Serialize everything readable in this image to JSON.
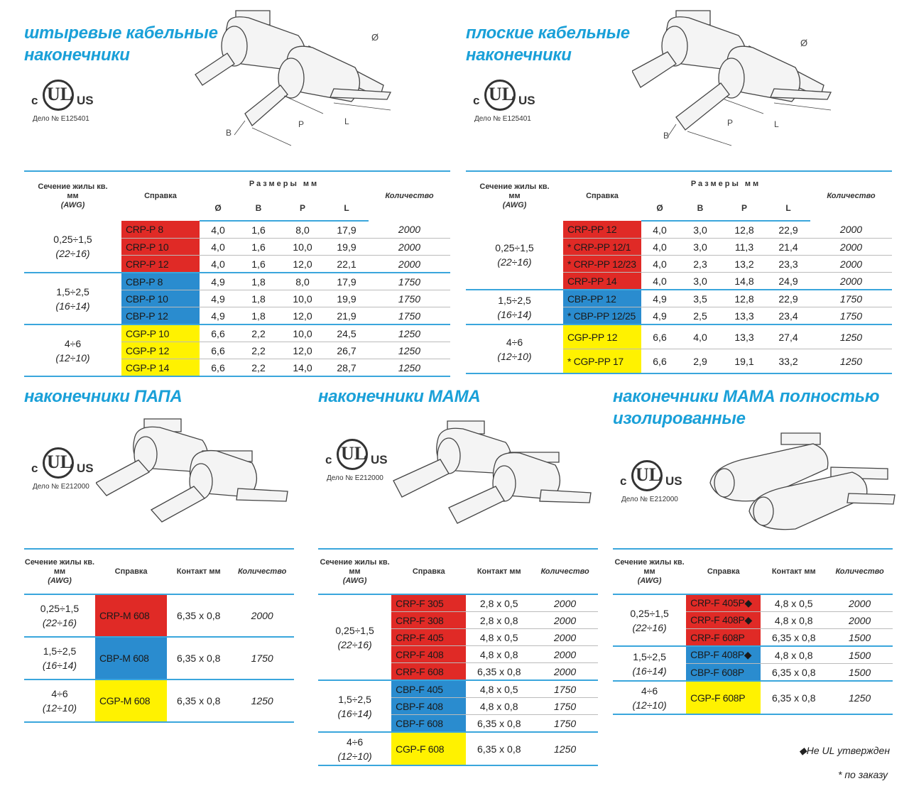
{
  "panels": {
    "pin": {
      "title_line1": "штыревые кабельные",
      "title_line2": "наконечники",
      "ul": {
        "c": "c",
        "ul": "UL",
        "us": "US",
        "case": "Дело № E125401"
      },
      "dims": {
        "diam": "Ø",
        "b": "B",
        "p": "P",
        "l": "L"
      },
      "headers": {
        "section": "Сечение жилы кв. мм",
        "awg": "(AWG)",
        "ref": "Справка",
        "sizes": "Размеры мм",
        "qty": "Количество",
        "d": "Ø",
        "b": "B",
        "p": "P",
        "l": "L"
      },
      "groups": [
        {
          "mm": "0,25÷1,5",
          "awg": "(22÷16)",
          "color": "red",
          "rows": [
            {
              "code": "CRP-P 8",
              "d": "4,0",
              "b": "1,6",
              "p": "8,0",
              "l": "17,9",
              "qty": "2000"
            },
            {
              "code": "CRP-P 10",
              "d": "4,0",
              "b": "1,6",
              "p": "10,0",
              "l": "19,9",
              "qty": "2000"
            },
            {
              "code": "CRP-P 12",
              "d": "4,0",
              "b": "1,6",
              "p": "12,0",
              "l": "22,1",
              "qty": "2000"
            }
          ]
        },
        {
          "mm": "1,5÷2,5",
          "awg": "(16÷14)",
          "color": "blue",
          "rows": [
            {
              "code": "CBP-P 8",
              "d": "4,9",
              "b": "1,8",
              "p": "8,0",
              "l": "17,9",
              "qty": "1750"
            },
            {
              "code": "CBP-P 10",
              "d": "4,9",
              "b": "1,8",
              "p": "10,0",
              "l": "19,9",
              "qty": "1750"
            },
            {
              "code": "CBP-P 12",
              "d": "4,9",
              "b": "1,8",
              "p": "12,0",
              "l": "21,9",
              "qty": "1750"
            }
          ]
        },
        {
          "mm": "4÷6",
          "awg": "(12÷10)",
          "color": "yellow",
          "rows": [
            {
              "code": "CGP-P 10",
              "d": "6,6",
              "b": "2,2",
              "p": "10,0",
              "l": "24,5",
              "qty": "1250"
            },
            {
              "code": "CGP-P 12",
              "d": "6,6",
              "b": "2,2",
              "p": "12,0",
              "l": "26,7",
              "qty": "1250"
            },
            {
              "code": "CGP-P 14",
              "d": "6,6",
              "b": "2,2",
              "p": "14,0",
              "l": "28,7",
              "qty": "1250"
            }
          ]
        }
      ]
    },
    "flat": {
      "title_line1": "плоские кабельные",
      "title_line2": "наконечники",
      "ul": {
        "c": "c",
        "ul": "UL",
        "us": "US",
        "case": "Дело № E125401"
      },
      "dims": {
        "diam": "Ø",
        "b": "B",
        "p": "P",
        "l": "L"
      },
      "headers": {
        "section": "Сечение жилы кв. мм",
        "awg": "(AWG)",
        "ref": "Справка",
        "sizes": "Размеры мм",
        "qty": "Количество",
        "d": "Ø",
        "b": "B",
        "p": "P",
        "l": "L"
      },
      "groups": [
        {
          "mm": "0,25÷1,5",
          "awg": "(22÷16)",
          "color": "red",
          "rows": [
            {
              "code": "CRP-PP 12",
              "d": "4,0",
              "b": "3,0",
              "p": "12,8",
              "l": "22,9",
              "qty": "2000"
            },
            {
              "code": "* CRP-PP 12/1",
              "d": "4,0",
              "b": "3,0",
              "p": "11,3",
              "l": "21,4",
              "qty": "2000"
            },
            {
              "code": "* CRP-PP 12/23",
              "d": "4,0",
              "b": "2,3",
              "p": "13,2",
              "l": "23,3",
              "qty": "2000"
            },
            {
              "code": "CRP-PP 14",
              "d": "4,0",
              "b": "3,0",
              "p": "14,8",
              "l": "24,9",
              "qty": "2000"
            }
          ]
        },
        {
          "mm": "1,5÷2,5",
          "awg": "(16÷14)",
          "color": "blue",
          "rows": [
            {
              "code": "CBP-PP 12",
              "d": "4,9",
              "b": "3,5",
              "p": "12,8",
              "l": "22,9",
              "qty": "1750"
            },
            {
              "code": "* CBP-PP 12/25",
              "d": "4,9",
              "b": "2,5",
              "p": "13,3",
              "l": "23,4",
              "qty": "1750"
            }
          ]
        },
        {
          "mm": "4÷6",
          "awg": "(12÷10)",
          "color": "yellow",
          "tall": true,
          "rows": [
            {
              "code": "CGP-PP 12",
              "d": "6,6",
              "b": "4,0",
              "p": "13,3",
              "l": "27,4",
              "qty": "1250"
            },
            {
              "code": "* CGP-PP 17",
              "d": "6,6",
              "b": "2,9",
              "p": "19,1",
              "l": "33,2",
              "qty": "1250"
            }
          ]
        }
      ]
    },
    "male": {
      "title_line1": "наконечники ПАПА",
      "ul": {
        "c": "c",
        "ul": "UL",
        "us": "US",
        "case": "Дело № E212000"
      },
      "headers": {
        "section": "Сечение жилы кв. мм",
        "awg": "(AWG)",
        "ref": "Справка",
        "contact": "Контакт мм",
        "qty": "Количество"
      },
      "groups": [
        {
          "mm": "0,25÷1,5",
          "awg": "(22÷16)",
          "color": "red",
          "rows": [
            {
              "code": "CRP-M 608",
              "contact": "6,35 x 0,8",
              "qty": "2000"
            }
          ]
        },
        {
          "mm": "1,5÷2,5",
          "awg": "(16÷14)",
          "color": "blue",
          "rows": [
            {
              "code": "CBP-M 608",
              "contact": "6,35 x 0,8",
              "qty": "1750"
            }
          ]
        },
        {
          "mm": "4÷6",
          "awg": "(12÷10)",
          "color": "yellow",
          "rows": [
            {
              "code": "CGP-M 608",
              "contact": "6,35 x 0,8",
              "qty": "1250"
            }
          ]
        }
      ]
    },
    "female": {
      "title_line1": "наконечники МАМА",
      "ul": {
        "c": "c",
        "ul": "UL",
        "us": "US",
        "case": "Дело № E212000"
      },
      "headers": {
        "section": "Сечение жилы кв. мм",
        "awg": "(AWG)",
        "ref": "Справка",
        "contact": "Контакт мм",
        "qty": "Количество"
      },
      "groups": [
        {
          "mm": "0,25÷1,5",
          "awg": "(22÷16)",
          "color": "red",
          "rows": [
            {
              "code": "CRP-F 305",
              "contact": "2,8 x 0,5",
              "qty": "2000"
            },
            {
              "code": "CRP-F 308",
              "contact": "2,8 x 0,8",
              "qty": "2000"
            },
            {
              "code": "CRP-F 405",
              "contact": "4,8 x 0,5",
              "qty": "2000"
            },
            {
              "code": "CRP-F 408",
              "contact": "4,8 x 0,8",
              "qty": "2000"
            },
            {
              "code": "CRP-F 608",
              "contact": "6,35 x 0,8",
              "qty": "2000"
            }
          ]
        },
        {
          "mm": "1,5÷2,5",
          "awg": "(16÷14)",
          "color": "blue",
          "rows": [
            {
              "code": "CBP-F 405",
              "contact": "4,8 x 0,5",
              "qty": "1750"
            },
            {
              "code": "CBP-F 408",
              "contact": "4,8 x 0,8",
              "qty": "1750"
            },
            {
              "code": "CBP-F 608",
              "contact": "6,35 x 0,8",
              "qty": "1750"
            }
          ]
        },
        {
          "mm": "4÷6",
          "awg": "(12÷10)",
          "color": "yellow",
          "tall": true,
          "rows": [
            {
              "code": "CGP-F 608",
              "contact": "6,35 x 0,8",
              "qty": "1250"
            }
          ]
        }
      ]
    },
    "female_ins": {
      "title_line1": "наконечники МАМА полностью",
      "title_line2": "изолированные",
      "ul": {
        "c": "c",
        "ul": "UL",
        "us": "US",
        "case": "Дело № E212000"
      },
      "headers": {
        "section": "Сечение жилы кв. мм",
        "awg": "(AWG)",
        "ref": "Справка",
        "contact": "Контакт мм",
        "qty": "Количество"
      },
      "groups": [
        {
          "mm": "0,25÷1,5",
          "awg": "(22÷16)",
          "color": "red",
          "rows": [
            {
              "code": "CRP-F 405P◆",
              "contact": "4,8 x 0,5",
              "qty": "2000"
            },
            {
              "code": "CRP-F 408P◆",
              "contact": "4,8 x 0,8",
              "qty": "2000"
            },
            {
              "code": "CRP-F 608P",
              "contact": "6,35 x 0,8",
              "qty": "1500"
            }
          ]
        },
        {
          "mm": "1,5÷2,5",
          "awg": "(16÷14)",
          "color": "blue",
          "rows": [
            {
              "code": "CBP-F 408P◆",
              "contact": "4,8 x 0,8",
              "qty": "1500"
            },
            {
              "code": "CBP-F 608P",
              "contact": "6,35 x 0,8",
              "qty": "1500"
            }
          ]
        },
        {
          "mm": "4÷6",
          "awg": "(12÷10)",
          "color": "yellow",
          "tall": true,
          "rows": [
            {
              "code": "CGP-F 608P",
              "contact": "6,35 x 0,8",
              "qty": "1250"
            }
          ]
        }
      ]
    }
  },
  "notes": {
    "not_ul": "◆Не UL утвержден",
    "on_order": "* по заказу"
  },
  "colors": {
    "accent": "#1aa0d8",
    "red": "#e02a26",
    "blue": "#2a8ccf",
    "yellow": "#fff200"
  }
}
